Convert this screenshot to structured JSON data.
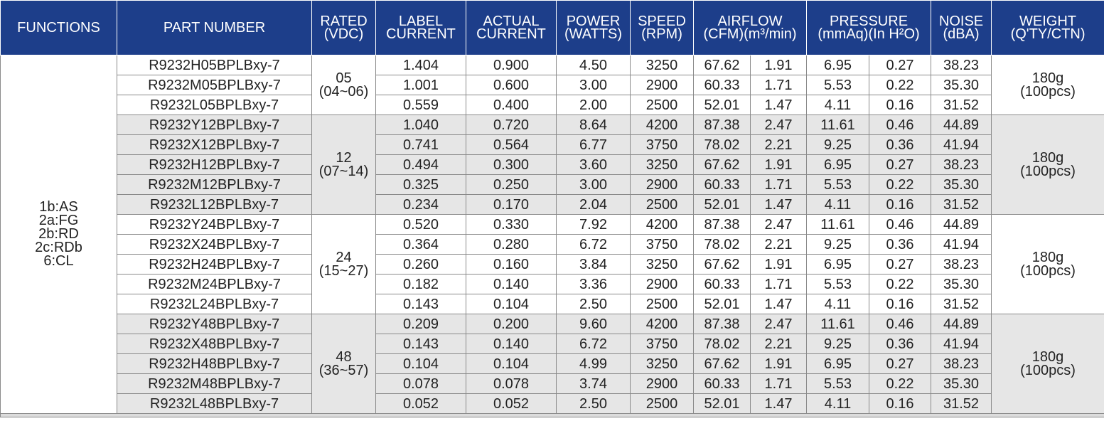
{
  "header": {
    "functions": [
      "FUNCTIONS"
    ],
    "part_number": [
      "PART NUMBER"
    ],
    "rated": [
      "RATED",
      "(VDC)"
    ],
    "label_current": [
      "LABEL",
      "CURRENT"
    ],
    "actual_current": [
      "ACTUAL",
      "CURRENT"
    ],
    "power": [
      "POWER",
      "(WATTS)"
    ],
    "speed": [
      "SPEED",
      "(RPM)"
    ],
    "airflow": [
      "AIRFLOW",
      "(CFM)(m³/min)"
    ],
    "pressure": [
      "PRESSURE",
      "(mmAq)(In H²O)"
    ],
    "noise": [
      "NOISE",
      "(dBA)"
    ],
    "weight": [
      "WEIGHT",
      "(Q'TY/CTN)"
    ]
  },
  "functions": [
    "1b:AS",
    "2a:FG",
    "2b:RD",
    "2c:RDb",
    "6:CL"
  ],
  "groups": [
    {
      "rated": "05",
      "range": "(04~06)",
      "weight": "180g",
      "qty": "(100pcs)",
      "rows": [
        [
          "R9232H05BPLBxy-7",
          "1.404",
          "0.900",
          "4.50",
          "3250",
          "67.62",
          "1.91",
          "6.95",
          "0.27",
          "38.23"
        ],
        [
          "R9232M05BPLBxy-7",
          "1.001",
          "0.600",
          "3.00",
          "2900",
          "60.33",
          "1.71",
          "5.53",
          "0.22",
          "35.30"
        ],
        [
          "R9232L05BPLBxy-7",
          "0.559",
          "0.400",
          "2.00",
          "2500",
          "52.01",
          "1.47",
          "4.11",
          "0.16",
          "31.52"
        ]
      ]
    },
    {
      "rated": "12",
      "range": "(07~14)",
      "weight": "180g",
      "qty": "(100pcs)",
      "rows": [
        [
          "R9232Y12BPLBxy-7",
          "1.040",
          "0.720",
          "8.64",
          "4200",
          "87.38",
          "2.47",
          "11.61",
          "0.46",
          "44.89"
        ],
        [
          "R9232X12BPLBxy-7",
          "0.741",
          "0.564",
          "6.77",
          "3750",
          "78.02",
          "2.21",
          "9.25",
          "0.36",
          "41.94"
        ],
        [
          "R9232H12BPLBxy-7",
          "0.494",
          "0.300",
          "3.60",
          "3250",
          "67.62",
          "1.91",
          "6.95",
          "0.27",
          "38.23"
        ],
        [
          "R9232M12BPLBxy-7",
          "0.325",
          "0.250",
          "3.00",
          "2900",
          "60.33",
          "1.71",
          "5.53",
          "0.22",
          "35.30"
        ],
        [
          "R9232L12BPLBxy-7",
          "0.234",
          "0.170",
          "2.04",
          "2500",
          "52.01",
          "1.47",
          "4.11",
          "0.16",
          "31.52"
        ]
      ]
    },
    {
      "rated": "24",
      "range": "(15~27)",
      "weight": "180g",
      "qty": "(100pcs)",
      "rows": [
        [
          "R9232Y24BPLBxy-7",
          "0.520",
          "0.330",
          "7.92",
          "4200",
          "87.38",
          "2.47",
          "11.61",
          "0.46",
          "44.89"
        ],
        [
          "R9232X24BPLBxy-7",
          "0.364",
          "0.280",
          "6.72",
          "3750",
          "78.02",
          "2.21",
          "9.25",
          "0.36",
          "41.94"
        ],
        [
          "R9232H24BPLBxy-7",
          "0.260",
          "0.160",
          "3.84",
          "3250",
          "67.62",
          "1.91",
          "6.95",
          "0.27",
          "38.23"
        ],
        [
          "R9232M24BPLBxy-7",
          "0.182",
          "0.140",
          "3.36",
          "2900",
          "60.33",
          "1.71",
          "5.53",
          "0.22",
          "35.30"
        ],
        [
          "R9232L24BPLBxy-7",
          "0.143",
          "0.104",
          "2.50",
          "2500",
          "52.01",
          "1.47",
          "4.11",
          "0.16",
          "31.52"
        ]
      ]
    },
    {
      "rated": "48",
      "range": "(36~57)",
      "weight": "180g",
      "qty": "(100pcs)",
      "rows": [
        [
          "R9232Y48BPLBxy-7",
          "0.209",
          "0.200",
          "9.60",
          "4200",
          "87.38",
          "2.47",
          "11.61",
          "0.46",
          "44.89"
        ],
        [
          "R9232X48BPLBxy-7",
          "0.143",
          "0.140",
          "6.72",
          "3750",
          "78.02",
          "2.21",
          "9.25",
          "0.36",
          "41.94"
        ],
        [
          "R9232H48BPLBxy-7",
          "0.104",
          "0.104",
          "4.99",
          "3250",
          "67.62",
          "1.91",
          "6.95",
          "0.27",
          "38.23"
        ],
        [
          "R9232M48BPLBxy-7",
          "0.078",
          "0.078",
          "3.74",
          "2900",
          "60.33",
          "1.71",
          "5.53",
          "0.22",
          "35.30"
        ],
        [
          "R9232L48BPLBxy-7",
          "0.052",
          "0.052",
          "2.50",
          "2500",
          "52.01",
          "1.47",
          "4.11",
          "0.16",
          "31.52"
        ]
      ]
    }
  ],
  "colors": {
    "header_bg": "#1d3e8a",
    "header_text": "#ffffff",
    "row_alt_bg": "#e6e6e6",
    "border": "#8a8a8a"
  }
}
